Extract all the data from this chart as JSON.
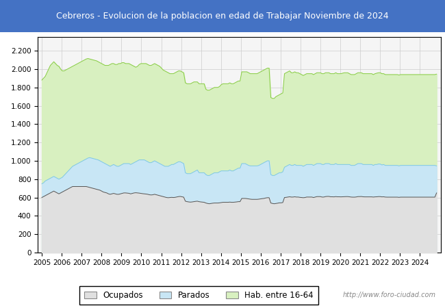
{
  "title": "Cebreros - Evolucion de la poblacion en edad de Trabajar Noviembre de 2024",
  "title_bg_color": "#4472c4",
  "title_text_color": "#ffffff",
  "ylim": [
    0,
    2350
  ],
  "yticks": [
    0,
    200,
    400,
    600,
    800,
    1000,
    1200,
    1400,
    1600,
    1800,
    2000,
    2200
  ],
  "ytick_labels": [
    "0",
    "200",
    "400",
    "600",
    "800",
    "1.000",
    "1.200",
    "1.400",
    "1.600",
    "1.800",
    "2.000",
    "2.200"
  ],
  "watermark": "http://www.foro-ciudad.com",
  "legend_labels": [
    "Ocupados",
    "Parados",
    "Hab. entre 16-64"
  ],
  "colors": {
    "ocupados_fill": "#e0e0e0",
    "ocupados_line": "#555555",
    "parados_fill": "#c8e6f5",
    "parados_line": "#7ec8e3",
    "hab_fill": "#d8f0c0",
    "hab_line": "#88cc44",
    "grid_bg": "#f0f0f0",
    "grid_line": "#cccccc"
  },
  "hab_data": [
    1880,
    1900,
    1920,
    1960,
    2000,
    2040,
    2060,
    2080,
    2060,
    2040,
    2030,
    2000,
    1980,
    1980,
    1990,
    2000,
    2010,
    2020,
    2030,
    2040,
    2050,
    2060,
    2070,
    2080,
    2090,
    2100,
    2110,
    2115,
    2110,
    2105,
    2100,
    2095,
    2090,
    2080,
    2070,
    2060,
    2050,
    2040,
    2040,
    2040,
    2050,
    2060,
    2060,
    2050,
    2050,
    2060,
    2060,
    2070,
    2070,
    2060,
    2060,
    2060,
    2050,
    2040,
    2030,
    2020,
    2030,
    2050,
    2060,
    2060,
    2060,
    2060,
    2050,
    2040,
    2040,
    2050,
    2060,
    2050,
    2040,
    2030,
    2010,
    1990,
    1980,
    1970,
    1960,
    1950,
    1950,
    1950,
    1960,
    1970,
    1980,
    1980,
    1970,
    1960,
    1850,
    1840,
    1840,
    1840,
    1850,
    1860,
    1860,
    1860,
    1840,
    1840,
    1840,
    1840,
    1780,
    1770,
    1770,
    1780,
    1790,
    1800,
    1800,
    1800,
    1810,
    1830,
    1840,
    1840,
    1840,
    1840,
    1850,
    1840,
    1840,
    1850,
    1860,
    1870,
    1870,
    1970,
    1970,
    1970,
    1970,
    1960,
    1950,
    1950,
    1950,
    1950,
    1950,
    1960,
    1970,
    1980,
    1990,
    2000,
    2010,
    2010,
    1690,
    1680,
    1680,
    1700,
    1710,
    1720,
    1730,
    1740,
    1950,
    1960,
    1970,
    1980,
    1960,
    1960,
    1970,
    1960,
    1960,
    1950,
    1940,
    1930,
    1940,
    1950,
    1950,
    1950,
    1950,
    1940,
    1950,
    1960,
    1960,
    1960,
    1950,
    1950,
    1960,
    1960,
    1960,
    1950,
    1950,
    1950,
    1960,
    1950,
    1950,
    1950,
    1955,
    1960,
    1960,
    1960,
    1950,
    1940,
    1940,
    1940,
    1950,
    1960,
    1960,
    1960,
    1950,
    1950,
    1950,
    1950,
    1950,
    1950,
    1940,
    1950,
    1955,
    1960,
    1960,
    1950,
    1950,
    1940,
    1940,
    1940,
    1940,
    1940,
    1940,
    1940,
    1940,
    1935,
    1940,
    1940,
    1940,
    1940,
    1940,
    1940,
    1940,
    1940,
    1940,
    1940,
    1940,
    1940,
    1940,
    1940,
    1940,
    1940,
    1940,
    1940,
    1940,
    1940,
    1940,
    1945
  ],
  "parados_data": [
    750,
    760,
    780,
    790,
    800,
    810,
    820,
    830,
    820,
    810,
    800,
    810,
    820,
    840,
    860,
    880,
    900,
    920,
    940,
    950,
    960,
    970,
    980,
    990,
    1000,
    1010,
    1020,
    1030,
    1035,
    1030,
    1025,
    1020,
    1015,
    1010,
    1000,
    990,
    980,
    970,
    960,
    950,
    940,
    950,
    960,
    950,
    940,
    940,
    950,
    960,
    970,
    970,
    970,
    970,
    960,
    970,
    980,
    990,
    1000,
    1010,
    1010,
    1010,
    1010,
    1000,
    990,
    980,
    980,
    990,
    1000,
    990,
    980,
    970,
    960,
    950,
    940,
    940,
    940,
    950,
    960,
    960,
    970,
    980,
    990,
    990,
    980,
    970,
    870,
    860,
    860,
    860,
    870,
    880,
    890,
    900,
    870,
    870,
    870,
    870,
    850,
    840,
    840,
    850,
    860,
    870,
    870,
    870,
    880,
    890,
    890,
    890,
    890,
    890,
    900,
    890,
    890,
    900,
    910,
    920,
    920,
    970,
    970,
    970,
    960,
    950,
    945,
    945,
    945,
    945,
    945,
    950,
    960,
    970,
    980,
    990,
    1000,
    1000,
    850,
    840,
    840,
    850,
    860,
    870,
    870,
    880,
    930,
    940,
    950,
    960,
    950,
    950,
    960,
    950,
    950,
    950,
    950,
    940,
    950,
    960,
    960,
    960,
    960,
    950,
    960,
    970,
    970,
    970,
    960,
    960,
    970,
    970,
    970,
    960,
    960,
    960,
    970,
    960,
    960,
    960,
    960,
    960,
    960,
    960,
    960,
    950,
    950,
    950,
    960,
    970,
    970,
    970,
    960,
    960,
    960,
    960,
    960,
    960,
    950,
    960,
    960,
    965,
    965,
    955,
    960,
    950,
    950,
    950,
    950,
    950,
    950,
    950,
    950,
    945,
    950,
    950,
    950,
    950,
    950,
    950,
    950,
    950,
    950,
    950,
    950,
    950,
    950,
    950,
    950,
    950,
    950,
    950,
    950,
    950,
    950,
    945
  ],
  "ocupados_data": [
    600,
    610,
    620,
    630,
    640,
    650,
    660,
    670,
    660,
    650,
    640,
    650,
    660,
    670,
    680,
    690,
    700,
    710,
    720,
    720,
    720,
    720,
    720,
    720,
    720,
    720,
    720,
    715,
    710,
    705,
    700,
    695,
    690,
    685,
    680,
    670,
    660,
    655,
    650,
    640,
    635,
    640,
    645,
    640,
    635,
    635,
    640,
    645,
    650,
    650,
    648,
    646,
    640,
    645,
    650,
    652,
    650,
    648,
    645,
    642,
    640,
    638,
    635,
    630,
    628,
    630,
    635,
    630,
    625,
    620,
    615,
    610,
    605,
    600,
    598,
    600,
    602,
    600,
    602,
    606,
    610,
    612,
    608,
    604,
    560,
    555,
    552,
    550,
    552,
    555,
    558,
    560,
    555,
    552,
    550,
    548,
    540,
    535,
    532,
    535,
    538,
    540,
    540,
    540,
    542,
    545,
    548,
    548,
    548,
    548,
    550,
    548,
    548,
    550,
    552,
    555,
    555,
    590,
    590,
    590,
    588,
    585,
    582,
    580,
    580,
    580,
    580,
    582,
    585,
    588,
    590,
    595,
    598,
    598,
    540,
    535,
    532,
    535,
    538,
    542,
    542,
    545,
    600,
    602,
    605,
    608,
    605,
    605,
    608,
    605,
    605,
    602,
    600,
    598,
    600,
    605,
    605,
    605,
    605,
    600,
    605,
    610,
    610,
    610,
    605,
    605,
    610,
    612,
    612,
    608,
    608,
    607,
    610,
    608,
    608,
    607,
    608,
    609,
    610,
    610,
    608,
    605,
    604,
    604,
    606,
    610,
    610,
    611,
    608,
    607,
    607,
    607,
    607,
    607,
    605,
    607,
    608,
    610,
    610,
    607,
    608,
    605,
    604,
    604,
    604,
    604,
    604,
    604,
    604,
    602,
    604,
    604,
    604,
    604,
    604,
    604,
    604,
    604,
    604,
    604,
    604,
    604,
    604,
    604,
    604,
    604,
    604,
    604,
    604,
    604,
    604,
    650
  ]
}
